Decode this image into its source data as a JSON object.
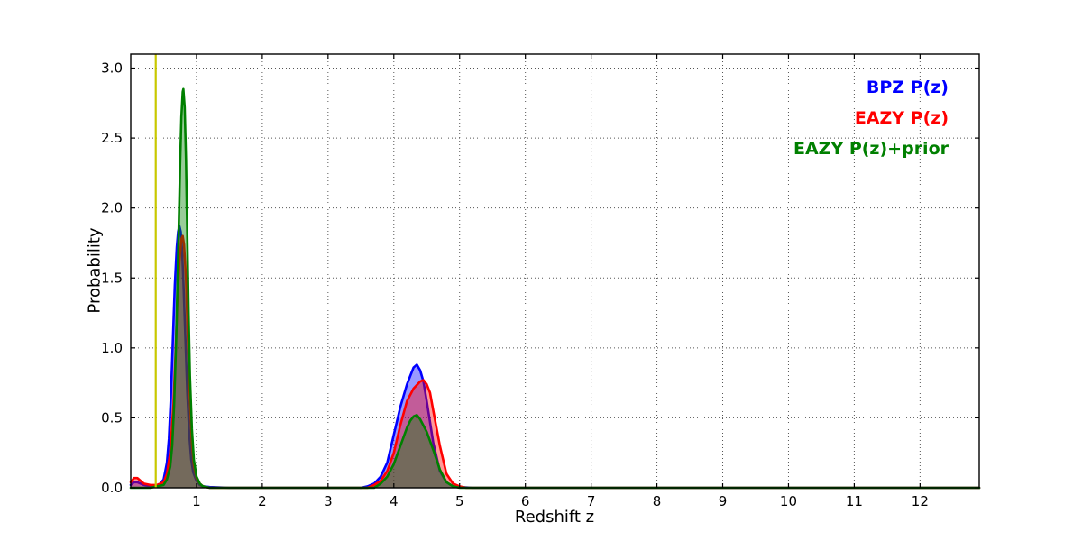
{
  "chart_data": {
    "type": "line",
    "title": "",
    "xlabel": "Redshift z",
    "ylabel": "Probability",
    "xlim": [
      0,
      12.9
    ],
    "ylim": [
      0,
      3.1
    ],
    "grid": true,
    "legend_position": "top-right",
    "xticks": [
      1,
      2,
      3,
      4,
      5,
      6,
      7,
      8,
      9,
      10,
      11,
      12
    ],
    "ytick_labels": [
      "0.0",
      "0.5",
      "1.0",
      "1.5",
      "2.0",
      "2.5",
      "3.0"
    ],
    "ytick_values": [
      0.0,
      0.5,
      1.0,
      1.5,
      2.0,
      2.5,
      3.0
    ],
    "vline": {
      "x": 0.38,
      "color": "#c8c800"
    },
    "legend": [
      {
        "label": "BPZ P(z)",
        "color": "#0000ff"
      },
      {
        "label": "EAZY P(z)",
        "color": "#ff0000"
      },
      {
        "label": "EAZY P(z)+prior",
        "color": "#008000"
      }
    ],
    "series": [
      {
        "name": "BPZ P(z)",
        "color": "#0000ff",
        "fill_opacity": 0.4,
        "points": [
          [
            0.0,
            0.02
          ],
          [
            0.05,
            0.04
          ],
          [
            0.1,
            0.04
          ],
          [
            0.15,
            0.03
          ],
          [
            0.2,
            0.02
          ],
          [
            0.3,
            0.01
          ],
          [
            0.4,
            0.02
          ],
          [
            0.45,
            0.03
          ],
          [
            0.5,
            0.06
          ],
          [
            0.55,
            0.18
          ],
          [
            0.58,
            0.35
          ],
          [
            0.61,
            0.65
          ],
          [
            0.64,
            1.05
          ],
          [
            0.67,
            1.45
          ],
          [
            0.7,
            1.72
          ],
          [
            0.72,
            1.83
          ],
          [
            0.74,
            1.87
          ],
          [
            0.76,
            1.83
          ],
          [
            0.78,
            1.7
          ],
          [
            0.8,
            1.48
          ],
          [
            0.83,
            1.08
          ],
          [
            0.86,
            0.68
          ],
          [
            0.89,
            0.38
          ],
          [
            0.92,
            0.2
          ],
          [
            0.95,
            0.11
          ],
          [
            1.0,
            0.05
          ],
          [
            1.05,
            0.02
          ],
          [
            1.1,
            0.01
          ],
          [
            1.2,
            0.005
          ],
          [
            1.5,
            0.0
          ],
          [
            2.0,
            0.0
          ],
          [
            3.0,
            0.0
          ],
          [
            3.5,
            0.0
          ],
          [
            3.6,
            0.01
          ],
          [
            3.7,
            0.03
          ],
          [
            3.8,
            0.08
          ],
          [
            3.9,
            0.18
          ],
          [
            4.0,
            0.38
          ],
          [
            4.1,
            0.58
          ],
          [
            4.2,
            0.74
          ],
          [
            4.25,
            0.8
          ],
          [
            4.3,
            0.86
          ],
          [
            4.35,
            0.88
          ],
          [
            4.4,
            0.84
          ],
          [
            4.45,
            0.76
          ],
          [
            4.5,
            0.62
          ],
          [
            4.6,
            0.32
          ],
          [
            4.7,
            0.12
          ],
          [
            4.8,
            0.04
          ],
          [
            4.9,
            0.01
          ],
          [
            5.0,
            0.005
          ],
          [
            5.2,
            0.0
          ],
          [
            6.0,
            0.0
          ],
          [
            12.9,
            0.0
          ]
        ]
      },
      {
        "name": "EAZY P(z)",
        "color": "#ff0000",
        "fill_opacity": 0.4,
        "points": [
          [
            0.0,
            0.04
          ],
          [
            0.05,
            0.07
          ],
          [
            0.1,
            0.07
          ],
          [
            0.15,
            0.05
          ],
          [
            0.2,
            0.03
          ],
          [
            0.3,
            0.02
          ],
          [
            0.4,
            0.02
          ],
          [
            0.5,
            0.04
          ],
          [
            0.55,
            0.1
          ],
          [
            0.6,
            0.25
          ],
          [
            0.65,
            0.6
          ],
          [
            0.68,
            0.95
          ],
          [
            0.71,
            1.35
          ],
          [
            0.74,
            1.62
          ],
          [
            0.77,
            1.78
          ],
          [
            0.79,
            1.8
          ],
          [
            0.81,
            1.74
          ],
          [
            0.84,
            1.5
          ],
          [
            0.87,
            1.05
          ],
          [
            0.9,
            0.62
          ],
          [
            0.93,
            0.32
          ],
          [
            0.96,
            0.16
          ],
          [
            1.0,
            0.07
          ],
          [
            1.05,
            0.03
          ],
          [
            1.1,
            0.01
          ],
          [
            1.2,
            0.0
          ],
          [
            2.0,
            0.0
          ],
          [
            3.0,
            0.0
          ],
          [
            3.6,
            0.0
          ],
          [
            3.7,
            0.02
          ],
          [
            3.8,
            0.05
          ],
          [
            3.9,
            0.12
          ],
          [
            4.0,
            0.25
          ],
          [
            4.1,
            0.45
          ],
          [
            4.2,
            0.62
          ],
          [
            4.3,
            0.71
          ],
          [
            4.4,
            0.76
          ],
          [
            4.45,
            0.77
          ],
          [
            4.5,
            0.74
          ],
          [
            4.55,
            0.68
          ],
          [
            4.6,
            0.55
          ],
          [
            4.7,
            0.3
          ],
          [
            4.8,
            0.1
          ],
          [
            4.9,
            0.03
          ],
          [
            5.0,
            0.01
          ],
          [
            5.1,
            0.0
          ],
          [
            6.0,
            0.0
          ],
          [
            12.9,
            0.0
          ]
        ]
      },
      {
        "name": "EAZY P(z)+prior",
        "color": "#008000",
        "fill_opacity": 0.4,
        "points": [
          [
            0.0,
            0.0
          ],
          [
            0.3,
            0.0
          ],
          [
            0.4,
            0.01
          ],
          [
            0.5,
            0.02
          ],
          [
            0.55,
            0.06
          ],
          [
            0.6,
            0.15
          ],
          [
            0.63,
            0.3
          ],
          [
            0.66,
            0.6
          ],
          [
            0.69,
            1.05
          ],
          [
            0.72,
            1.65
          ],
          [
            0.75,
            2.3
          ],
          [
            0.77,
            2.65
          ],
          [
            0.79,
            2.83
          ],
          [
            0.8,
            2.85
          ],
          [
            0.82,
            2.72
          ],
          [
            0.84,
            2.35
          ],
          [
            0.86,
            1.8
          ],
          [
            0.88,
            1.25
          ],
          [
            0.9,
            0.8
          ],
          [
            0.93,
            0.42
          ],
          [
            0.96,
            0.2
          ],
          [
            1.0,
            0.08
          ],
          [
            1.05,
            0.03
          ],
          [
            1.1,
            0.01
          ],
          [
            1.2,
            0.0
          ],
          [
            2.0,
            0.0
          ],
          [
            3.0,
            0.0
          ],
          [
            3.7,
            0.0
          ],
          [
            3.8,
            0.03
          ],
          [
            3.9,
            0.08
          ],
          [
            4.0,
            0.17
          ],
          [
            4.1,
            0.3
          ],
          [
            4.2,
            0.43
          ],
          [
            4.25,
            0.48
          ],
          [
            4.3,
            0.51
          ],
          [
            4.35,
            0.52
          ],
          [
            4.4,
            0.49
          ],
          [
            4.5,
            0.4
          ],
          [
            4.6,
            0.27
          ],
          [
            4.7,
            0.13
          ],
          [
            4.8,
            0.04
          ],
          [
            4.9,
            0.01
          ],
          [
            5.0,
            0.0
          ],
          [
            6.0,
            0.0
          ],
          [
            12.9,
            0.0
          ]
        ]
      }
    ]
  }
}
